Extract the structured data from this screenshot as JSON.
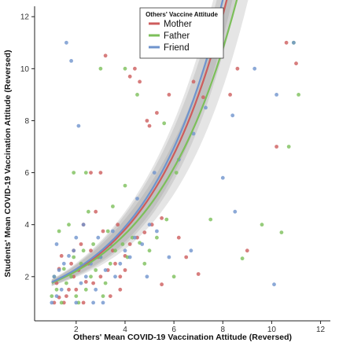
{
  "chart_data": {
    "type": "scatter",
    "xlabel": "Others' Mean COVID-19 Vaccination Attitude (Reversed)",
    "ylabel": "Students' Mean COVID-19 Vaccination Attitude (Reversed)",
    "xlim": [
      0.3,
      12.4
    ],
    "ylim": [
      0.3,
      12.4
    ],
    "x_ticks": [
      2,
      4,
      6,
      8,
      10,
      12
    ],
    "y_ticks": [
      2,
      4,
      6,
      8,
      10,
      12
    ],
    "grid": false,
    "legend": {
      "title": "Others' Vaccine Attitude",
      "placement": "top-center",
      "entries": [
        "Mother",
        "Father",
        "Friend"
      ]
    },
    "series": [
      {
        "name": "Mother",
        "color": "#cd5c5c",
        "fit": {
          "x_max": 10.8,
          "a": 0.4,
          "b": 0.307
        },
        "points": [
          [
            1.1,
            1.0
          ],
          [
            1.3,
            1.2
          ],
          [
            1.5,
            1.0
          ],
          [
            1.7,
            1.5
          ],
          [
            1.2,
            1.75
          ],
          [
            1.9,
            2.0
          ],
          [
            2.1,
            2.25
          ],
          [
            2.3,
            1.0
          ],
          [
            2.5,
            2.5
          ],
          [
            1.4,
            2.8
          ],
          [
            2.7,
            1.75
          ],
          [
            3.0,
            2.0
          ],
          [
            3.3,
            2.25
          ],
          [
            3.1,
            3.75
          ],
          [
            2.6,
            3.0
          ],
          [
            3.6,
            2.5
          ],
          [
            4.0,
            2.8
          ],
          [
            3.8,
            1.5
          ],
          [
            1.8,
            2.5
          ],
          [
            2.2,
            3.25
          ],
          [
            1.6,
            1.25
          ],
          [
            2.9,
            2.75
          ],
          [
            3.5,
            3.0
          ],
          [
            4.2,
            3.25
          ],
          [
            4.5,
            3.5
          ],
          [
            4.8,
            3.7
          ],
          [
            5.1,
            4.0
          ],
          [
            5.5,
            4.25
          ],
          [
            2.3,
            4.0
          ],
          [
            2.8,
            4.5
          ],
          [
            3.0,
            6.0
          ],
          [
            2.6,
            6.0
          ],
          [
            3.2,
            10.5
          ],
          [
            4.2,
            9.7
          ],
          [
            4.4,
            10.0
          ],
          [
            4.6,
            9.5
          ],
          [
            4.9,
            8.0
          ],
          [
            5.0,
            7.8
          ],
          [
            5.3,
            8.3
          ],
          [
            5.8,
            9.0
          ],
          [
            6.2,
            3.5
          ],
          [
            6.8,
            9.5
          ],
          [
            7.2,
            8.9
          ],
          [
            7.0,
            2.1
          ],
          [
            5.5,
            1.7
          ],
          [
            6.5,
            2.75
          ],
          [
            8.3,
            9.0
          ],
          [
            8.6,
            10.0
          ],
          [
            9.0,
            3.0
          ],
          [
            10.2,
            7.0
          ],
          [
            11.0,
            10.2
          ],
          [
            10.6,
            11.0
          ],
          [
            3.8,
            2.0
          ],
          [
            2.0,
            1.5
          ],
          [
            1.3,
            2.3
          ],
          [
            4.0,
            2.25
          ],
          [
            3.4,
            1.25
          ],
          [
            2.4,
            1.8
          ],
          [
            1.9,
            3.0
          ],
          [
            3.7,
            4.0
          ]
        ]
      },
      {
        "name": "Father",
        "color": "#7cbf5a",
        "fit": {
          "x_max": 10.85,
          "a": 0.42,
          "b": 0.292
        },
        "points": [
          [
            1.0,
            1.25
          ],
          [
            1.2,
            1.5
          ],
          [
            1.4,
            1.0
          ],
          [
            1.6,
            1.75
          ],
          [
            1.8,
            2.0
          ],
          [
            2.0,
            1.25
          ],
          [
            2.2,
            2.5
          ],
          [
            2.4,
            1.5
          ],
          [
            2.6,
            2.0
          ],
          [
            2.8,
            2.25
          ],
          [
            3.0,
            2.75
          ],
          [
            3.2,
            1.75
          ],
          [
            3.4,
            2.5
          ],
          [
            3.6,
            3.0
          ],
          [
            3.9,
            3.25
          ],
          [
            4.1,
            2.75
          ],
          [
            4.3,
            3.5
          ],
          [
            1.3,
            3.75
          ],
          [
            1.7,
            4.0
          ],
          [
            2.5,
            4.5
          ],
          [
            1.9,
            2.75
          ],
          [
            2.7,
            3.25
          ],
          [
            3.3,
            3.75
          ],
          [
            4.6,
            3.3
          ],
          [
            5.0,
            3.0
          ],
          [
            5.3,
            3.5
          ],
          [
            5.7,
            4.2
          ],
          [
            3.5,
            4.7
          ],
          [
            4.0,
            5.5
          ],
          [
            1.9,
            6.0
          ],
          [
            2.4,
            6.0
          ],
          [
            3.0,
            10.0
          ],
          [
            4.0,
            10.0
          ],
          [
            4.5,
            9.0
          ],
          [
            5.6,
            7.9
          ],
          [
            6.1,
            6.0
          ],
          [
            6.0,
            2.0
          ],
          [
            7.5,
            4.2
          ],
          [
            8.8,
            2.7
          ],
          [
            10.4,
            3.7
          ],
          [
            10.9,
            11.0
          ],
          [
            11.1,
            9.0
          ],
          [
            10.7,
            7.0
          ],
          [
            9.6,
            4.0
          ],
          [
            1.1,
            2.0
          ],
          [
            2.1,
            1.0
          ],
          [
            3.1,
            1.25
          ],
          [
            4.8,
            2.5
          ],
          [
            1.5,
            2.3
          ],
          [
            2.3,
            3.0
          ]
        ]
      },
      {
        "name": "Friend",
        "color": "#6f94cd",
        "fit": {
          "x_max": 10.65,
          "a": 0.42,
          "b": 0.313
        },
        "points": [
          [
            1.0,
            1.0
          ],
          [
            1.2,
            1.25
          ],
          [
            1.4,
            1.5
          ],
          [
            1.1,
            2.0
          ],
          [
            1.3,
            2.25
          ],
          [
            1.5,
            2.5
          ],
          [
            1.7,
            2.8
          ],
          [
            1.9,
            3.0
          ],
          [
            2.0,
            1.0
          ],
          [
            2.2,
            1.75
          ],
          [
            2.4,
            2.0
          ],
          [
            2.6,
            2.5
          ],
          [
            2.8,
            1.5
          ],
          [
            3.0,
            2.75
          ],
          [
            3.2,
            2.25
          ],
          [
            3.4,
            3.25
          ],
          [
            3.6,
            2.0
          ],
          [
            3.8,
            2.5
          ],
          [
            4.0,
            3.0
          ],
          [
            4.2,
            2.75
          ],
          [
            4.4,
            3.5
          ],
          [
            4.7,
            3.25
          ],
          [
            5.0,
            4.0
          ],
          [
            5.3,
            3.75
          ],
          [
            1.6,
            11.0
          ],
          [
            1.8,
            10.3
          ],
          [
            2.1,
            7.8
          ],
          [
            2.0,
            3.5
          ],
          [
            2.3,
            4.0
          ],
          [
            3.5,
            3.75
          ],
          [
            4.5,
            5.0
          ],
          [
            5.2,
            6.0
          ],
          [
            6.2,
            6.5
          ],
          [
            6.8,
            7.5
          ],
          [
            7.3,
            8.5
          ],
          [
            7.6,
            10.5
          ],
          [
            8.4,
            8.2
          ],
          [
            9.3,
            10.0
          ],
          [
            10.1,
            1.7
          ],
          [
            10.2,
            9.0
          ],
          [
            10.9,
            11.0
          ],
          [
            8.0,
            5.8
          ],
          [
            8.5,
            4.5
          ],
          [
            5.8,
            2.75
          ],
          [
            6.7,
            3.0
          ],
          [
            2.7,
            1.0
          ],
          [
            3.1,
            1.0
          ],
          [
            1.2,
            3.25
          ],
          [
            2.9,
            3.5
          ],
          [
            4.9,
            2.0
          ]
        ]
      }
    ]
  }
}
